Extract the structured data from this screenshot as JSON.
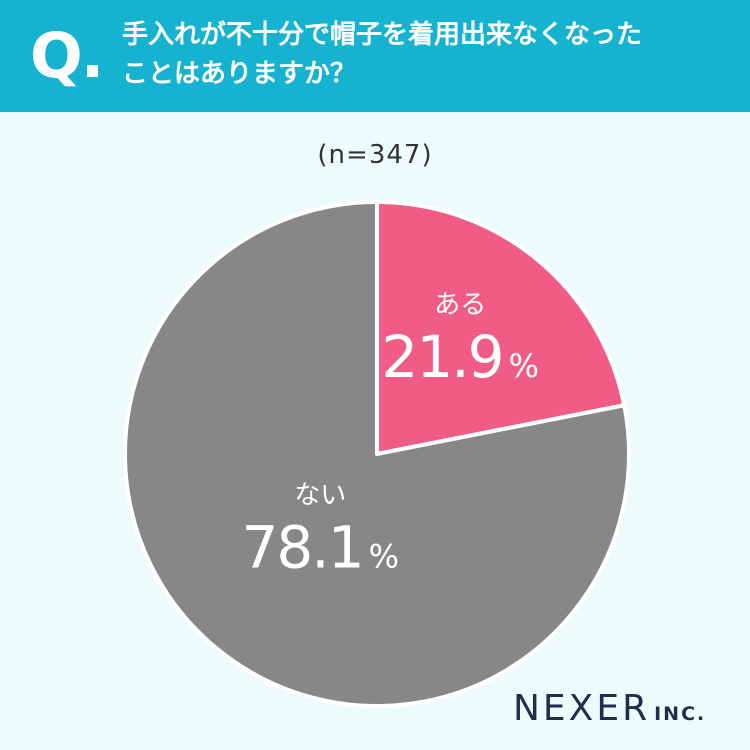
{
  "header": {
    "q_mark": "Q.",
    "question_line1": "手入れが不十分で帽子を着用出来なくなった",
    "question_line2": "ことはありますか？"
  },
  "sample": "(n=347)",
  "colors": {
    "header_bg": "#16b3d1",
    "yes": "#f05c86",
    "no": "#888788",
    "background": "#eefbfc"
  },
  "chart_data": {
    "type": "pie",
    "slices": [
      {
        "label": "ある",
        "value": 21.9,
        "display": "21.9",
        "unit": "%",
        "color": "#f05c86"
      },
      {
        "label": "ない",
        "value": 78.1,
        "display": "78.1",
        "unit": "%",
        "color": "#888788"
      }
    ],
    "start": "12 o'clock",
    "direction": "clockwise",
    "legend": "none"
  },
  "logo": {
    "main": "NEXER",
    "sub": "INC."
  }
}
